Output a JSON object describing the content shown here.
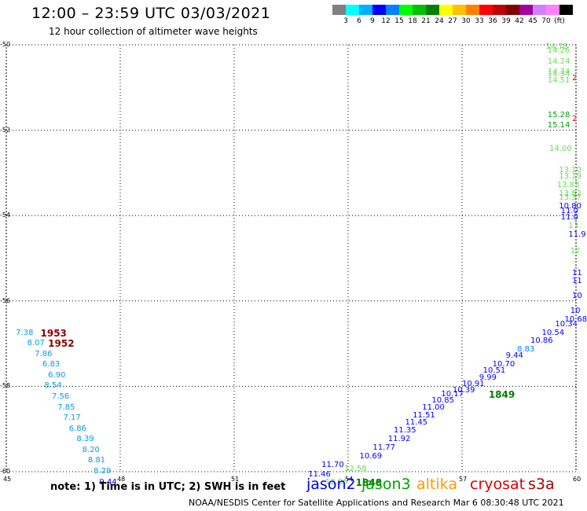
{
  "title": "12:00 – 23:59 UTC 03/03/2021",
  "subtitle": "12 hour collection of altimeter wave heights",
  "color_scale": {
    "colors": [
      "#808080",
      "#00ffff",
      "#00b0ff",
      "#0000ff",
      "#0080ff",
      "#00ff00",
      "#00c000",
      "#008000",
      "#ffff00",
      "#ffc000",
      "#ff8000",
      "#ff0000",
      "#c00000",
      "#800000",
      "#a000a0",
      "#d080ff",
      "#ff80ff",
      "#000000"
    ],
    "labels": [
      "3",
      "6",
      "9",
      "12",
      "15",
      "18",
      "21",
      "24",
      "27",
      "30",
      "33",
      "36",
      "39",
      "42",
      "45",
      "70",
      "(ft)"
    ]
  },
  "axes": {
    "x_ticks": [
      "45",
      "48",
      "51",
      "54",
      "57",
      "60"
    ],
    "y_ticks": [
      "-50",
      "-52",
      "-54",
      "-56",
      "-58",
      "-60"
    ]
  },
  "map": {
    "xlim": [
      45,
      60
    ],
    "ylim": [
      -60,
      -50
    ],
    "grid": "dotted",
    "observations": [
      {
        "lon": 45.25,
        "lat": -56.75,
        "text": "7.38",
        "color": "#00a0e0"
      },
      {
        "lon": 45.55,
        "lat": -57.0,
        "text": "8.07",
        "color": "#00a0e0"
      },
      {
        "lon": 45.75,
        "lat": -57.25,
        "text": "7.86",
        "color": "#00a0e0"
      },
      {
        "lon": 45.95,
        "lat": -57.5,
        "text": "6.83",
        "color": "#00a0e0"
      },
      {
        "lon": 46.1,
        "lat": -57.75,
        "text": "6.90",
        "color": "#00a0e0"
      },
      {
        "lon": 46.0,
        "lat": -58.0,
        "text": "8.54",
        "color": "#00a0e0"
      },
      {
        "lon": 46.2,
        "lat": -58.25,
        "text": "7.56",
        "color": "#00a0e0"
      },
      {
        "lon": 46.35,
        "lat": -58.5,
        "text": "7.85",
        "color": "#00a0e0"
      },
      {
        "lon": 46.5,
        "lat": -58.75,
        "text": "7.17",
        "color": "#00a0e0"
      },
      {
        "lon": 46.65,
        "lat": -59.0,
        "text": "6.86",
        "color": "#00a0e0"
      },
      {
        "lon": 46.85,
        "lat": -59.25,
        "text": "8.39",
        "color": "#00a0e0"
      },
      {
        "lon": 47.0,
        "lat": -59.5,
        "text": "8.20",
        "color": "#00a0e0"
      },
      {
        "lon": 47.15,
        "lat": -59.75,
        "text": "8.81",
        "color": "#00a0e0"
      },
      {
        "lon": 47.3,
        "lat": -60.0,
        "text": "8.29",
        "color": "#00a0e0"
      },
      {
        "lon": 47.45,
        "lat": -60.25,
        "text": "9.44",
        "color": "#0000ff"
      },
      {
        "lon": 53.4,
        "lat": -60.25,
        "text": "12.86",
        "color": "#66dd55"
      },
      {
        "lon": 53.9,
        "lat": -59.95,
        "text": "12.58",
        "color": "#66dd55"
      },
      {
        "lon": 52.95,
        "lat": -60.07,
        "text": "11.46",
        "color": "#0000ff"
      },
      {
        "lon": 53.3,
        "lat": -59.85,
        "text": "11.70",
        "color": "#0000ff"
      },
      {
        "lon": 54.3,
        "lat": -59.65,
        "text": "10.69",
        "color": "#0000ff"
      },
      {
        "lon": 54.65,
        "lat": -59.45,
        "text": "11.77",
        "color": "#0000ff"
      },
      {
        "lon": 55.05,
        "lat": -59.25,
        "text": "11.92",
        "color": "#0000ff"
      },
      {
        "lon": 55.2,
        "lat": -59.05,
        "text": "11.35",
        "color": "#0000ff"
      },
      {
        "lon": 55.5,
        "lat": -58.85,
        "text": "11.45",
        "color": "#0000ff"
      },
      {
        "lon": 55.7,
        "lat": -58.7,
        "text": "11.51",
        "color": "#0000ff"
      },
      {
        "lon": 55.95,
        "lat": -58.5,
        "text": "11.00",
        "color": "#0000ff"
      },
      {
        "lon": 56.2,
        "lat": -58.35,
        "text": "10.85",
        "color": "#0000ff"
      },
      {
        "lon": 56.45,
        "lat": -58.2,
        "text": "10.17",
        "color": "#0000ff"
      },
      {
        "lon": 56.75,
        "lat": -58.1,
        "text": "10.39",
        "color": "#0000ff"
      },
      {
        "lon": 57.0,
        "lat": -57.95,
        "text": "10.91",
        "color": "#0000ff"
      },
      {
        "lon": 57.45,
        "lat": -57.8,
        "text": "9.99",
        "color": "#0000ff"
      },
      {
        "lon": 57.55,
        "lat": -57.65,
        "text": "10.51",
        "color": "#0000ff"
      },
      {
        "lon": 57.8,
        "lat": -57.5,
        "text": "10.70",
        "color": "#0000ff"
      },
      {
        "lon": 58.15,
        "lat": -57.3,
        "text": "9.44",
        "color": "#0000ff"
      },
      {
        "lon": 58.45,
        "lat": -57.15,
        "text": "8.83",
        "color": "#0080ff"
      },
      {
        "lon": 58.8,
        "lat": -56.95,
        "text": "10.86",
        "color": "#0000ff"
      },
      {
        "lon": 59.1,
        "lat": -56.75,
        "text": "10.54",
        "color": "#0000ff"
      },
      {
        "lon": 59.45,
        "lat": -56.55,
        "text": "10.34",
        "color": "#0000ff"
      },
      {
        "lon": 59.7,
        "lat": -56.45,
        "text": "10.68",
        "color": "#0000ff"
      },
      {
        "lon": 59.85,
        "lat": -56.25,
        "text": "10",
        "color": "#0000ff"
      },
      {
        "lon": 59.9,
        "lat": -55.9,
        "text": "10",
        "color": "#0000ff"
      },
      {
        "lon": 59.9,
        "lat": -55.55,
        "text": "11",
        "color": "#0000ff"
      },
      {
        "lon": 59.9,
        "lat": -55.35,
        "text": "11",
        "color": "#0000ff"
      },
      {
        "lon": 59.85,
        "lat": -54.85,
        "text": "12",
        "color": "#66dd55"
      },
      {
        "lon": 59.8,
        "lat": -54.45,
        "text": "11.9",
        "color": "#0000ff"
      },
      {
        "lon": 59.8,
        "lat": -54.25,
        "text": "13.",
        "color": "#66dd55"
      },
      {
        "lon": 59.55,
        "lat": -53.8,
        "text": "10.80",
        "color": "#0000ff"
      },
      {
        "lon": 59.6,
        "lat": -53.9,
        "text": "11.0",
        "color": "#0000ff"
      },
      {
        "lon": 59.6,
        "lat": -54.05,
        "text": "11.0",
        "color": "#0000ff"
      },
      {
        "lon": 59.55,
        "lat": -52.95,
        "text": "13.10",
        "color": "#66dd55"
      },
      {
        "lon": 59.55,
        "lat": -53.1,
        "text": "13.19",
        "color": "#66dd55"
      },
      {
        "lon": 59.5,
        "lat": -53.3,
        "text": "13.83",
        "color": "#66dd55"
      },
      {
        "lon": 59.55,
        "lat": -53.5,
        "text": "13.82",
        "color": "#66dd55"
      },
      {
        "lon": 59.55,
        "lat": -53.6,
        "text": "13.37",
        "color": "#66dd55"
      },
      {
        "lon": 59.3,
        "lat": -52.45,
        "text": "14.00",
        "color": "#66dd55"
      },
      {
        "lon": 59.25,
        "lat": -51.9,
        "text": "15.14",
        "color": "#00a000"
      },
      {
        "lon": 59.25,
        "lat": -51.65,
        "text": "15.28",
        "color": "#00a000"
      },
      {
        "lon": 59.25,
        "lat": -50.85,
        "text": "14.51",
        "color": "#66dd55"
      },
      {
        "lon": 59.25,
        "lat": -50.7,
        "text": "14.34",
        "color": "#66dd55"
      },
      {
        "lon": 59.25,
        "lat": -50.65,
        "text": "14.24",
        "color": "#66dd55"
      },
      {
        "lon": 59.25,
        "lat": -50.4,
        "text": "14.24",
        "color": "#66dd55"
      },
      {
        "lon": 59.25,
        "lat": -50.15,
        "text": "14.26",
        "color": "#66dd55"
      },
      {
        "lon": 59.2,
        "lat": -50.05,
        "text": "14.78",
        "color": "#66dd55"
      },
      {
        "lon": 59.95,
        "lat": -50.8,
        "text": "2",
        "color": "#dd0000"
      },
      {
        "lon": 60.0,
        "lat": -51.75,
        "text": "2",
        "color": "#dd0000"
      }
    ],
    "hour_labels": [
      {
        "lon": 45.9,
        "lat": -56.75,
        "text": "1953",
        "color": "#8b0000"
      },
      {
        "lon": 46.1,
        "lat": -57.0,
        "text": "1952",
        "color": "#8b0000"
      },
      {
        "lon": 57.7,
        "lat": -58.2,
        "text": "1849",
        "color": "#008000"
      },
      {
        "lon": 54.2,
        "lat": -60.25,
        "text": "1848",
        "color": "#008000"
      }
    ]
  },
  "footer": {
    "note": "note:  1) Time is in UTC;  2) SWH is in feet",
    "satellites": [
      {
        "name": "jason2",
        "color": "#0000dd"
      },
      {
        "name": "jason3",
        "color": "#00a000"
      },
      {
        "name": "altika",
        "color": "#ff9900"
      },
      {
        "name": "cryosat",
        "color": "#dd0000"
      },
      {
        "name": "s3a",
        "color": "#aa0000"
      }
    ],
    "credit": "NOAA/NESDIS Center for Satellite Applications and Research    Mar  6 08:30:48 UTC 2021"
  }
}
